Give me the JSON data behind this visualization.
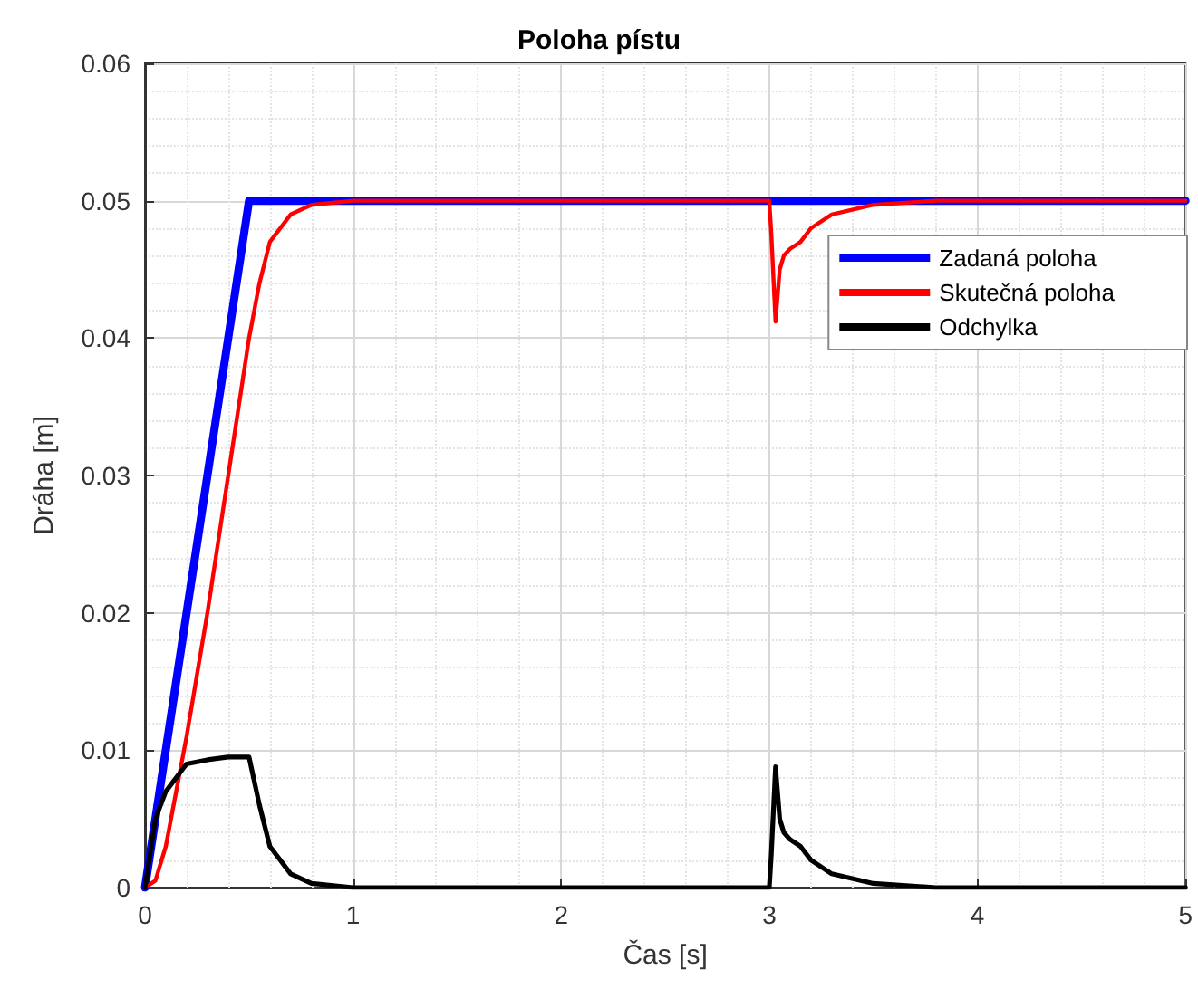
{
  "chart_data": {
    "type": "line",
    "title": "Poloha pístu",
    "xlabel": "Čas [s]",
    "ylabel": "Dráha [m]",
    "xlim": [
      0,
      5
    ],
    "xticks": [
      0,
      1,
      2,
      3,
      4,
      5
    ],
    "ylim": [
      0,
      0.06
    ],
    "yticks": [
      0,
      0.01,
      0.02,
      0.03,
      0.04,
      0.05,
      0.06
    ],
    "grid": true,
    "legend": "top right",
    "marker": "none",
    "line_style": "solid",
    "series": [
      {
        "name": "Zadaná poloha",
        "color": "#0000ff",
        "x": [
          0,
          0.5,
          3.0,
          5
        ],
        "values": [
          0,
          0.05,
          0.05,
          0.05
        ]
      },
      {
        "name": "Skutečná poloha",
        "color": "#ff0000",
        "x": [
          0,
          0.05,
          0.1,
          0.2,
          0.3,
          0.4,
          0.5,
          0.55,
          0.6,
          0.7,
          0.8,
          1.0,
          3.0,
          3.01,
          3.03,
          3.05,
          3.07,
          3.1,
          3.15,
          3.2,
          3.3,
          3.5,
          3.8,
          5
        ],
        "values": [
          0,
          0.0005,
          0.003,
          0.011,
          0.02,
          0.03,
          0.04,
          0.044,
          0.047,
          0.049,
          0.0497,
          0.05,
          0.05,
          0.0475,
          0.0412,
          0.045,
          0.046,
          0.0465,
          0.047,
          0.048,
          0.049,
          0.0497,
          0.05,
          0.05
        ]
      },
      {
        "name": "Odchylka",
        "color": "#000000",
        "x": [
          0,
          0.05,
          0.1,
          0.2,
          0.3,
          0.4,
          0.5,
          0.55,
          0.6,
          0.7,
          0.8,
          1.0,
          3.0,
          3.01,
          3.03,
          3.05,
          3.07,
          3.1,
          3.15,
          3.2,
          3.3,
          3.5,
          3.8,
          5
        ],
        "values": [
          0,
          0.005,
          0.007,
          0.009,
          0.0093,
          0.0095,
          0.0095,
          0.006,
          0.003,
          0.001,
          0.0003,
          0,
          0,
          0.0025,
          0.0088,
          0.005,
          0.004,
          0.0035,
          0.003,
          0.002,
          0.001,
          0.0003,
          0,
          0
        ]
      }
    ]
  }
}
